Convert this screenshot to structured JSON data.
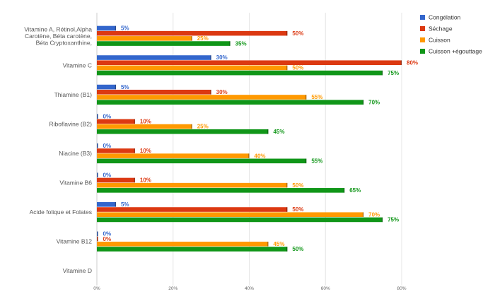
{
  "chart_data": {
    "type": "bar",
    "orientation": "horizontal",
    "categories": [
      [
        "Vitamine A, Rétinol,Alpha",
        "Carotène, Béta carotène,",
        "Béta Cryptoxanthine,"
      ],
      [
        "Vitamine C"
      ],
      [
        "Thiamine (B1)"
      ],
      [
        "Riboflavine (B2)"
      ],
      [
        "Niacine (B3)"
      ],
      [
        "Vitamine B6"
      ],
      [
        "Acide folique et Folates"
      ],
      [
        "Vitamine B12"
      ],
      [
        "Vitamine D"
      ]
    ],
    "series": [
      {
        "name": "Congélation",
        "color": "#3366cc",
        "values": [
          5,
          30,
          5,
          0,
          0,
          0,
          5,
          0,
          null
        ],
        "labels": [
          "5%",
          "30%",
          "5%",
          "0%",
          "0%",
          "0%",
          "5%",
          "0%",
          ""
        ]
      },
      {
        "name": "Séchage",
        "color": "#dc3912",
        "values": [
          50,
          80,
          30,
          10,
          10,
          10,
          50,
          0,
          null
        ],
        "labels": [
          "50%",
          "80%",
          "30%",
          "10%",
          "10%",
          "10%",
          "50%",
          "0%",
          ""
        ]
      },
      {
        "name": "Cuisson",
        "color": "#ff9900",
        "values": [
          25,
          50,
          55,
          25,
          40,
          50,
          70,
          45,
          null
        ],
        "labels": [
          "25%",
          "50%",
          "55%",
          "25%",
          "40%",
          "50%",
          "70%",
          "45%",
          ""
        ]
      },
      {
        "name": "Cuisson +égouttage",
        "color": "#109618",
        "values": [
          35,
          75,
          70,
          45,
          55,
          65,
          75,
          50,
          null
        ],
        "labels": [
          "35%",
          "75%",
          "70%",
          "45%",
          "55%",
          "65%",
          "75%",
          "50%",
          ""
        ]
      }
    ],
    "x_ticks": [
      "0%",
      "20%",
      "40%",
      "60%",
      "80%"
    ],
    "xlim": [
      0,
      80
    ],
    "grid": true,
    "legend_position": "top-right"
  }
}
